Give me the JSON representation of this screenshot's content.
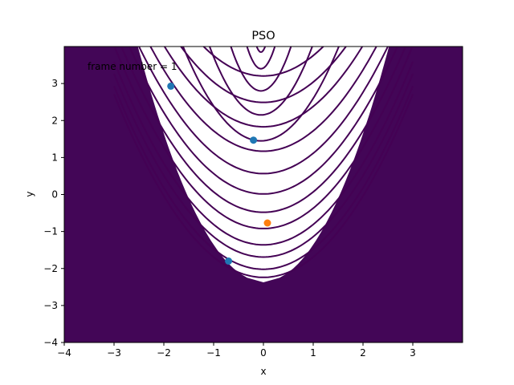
{
  "chart_data": {
    "type": "scatter",
    "title": "PSO",
    "xlabel": "x",
    "ylabel": "y",
    "xlim": [
      -4,
      4
    ],
    "ylim": [
      -4,
      4
    ],
    "x_ticks": [
      -4,
      -3,
      -2,
      -1,
      0,
      1,
      2,
      3
    ],
    "y_ticks": [
      -4,
      -3,
      -2,
      -1,
      0,
      1,
      2,
      3
    ],
    "annotation": "frame number = 1",
    "grid": false,
    "background": "contour",
    "colormap": [
      "#440154",
      "#3b528b",
      "#21918c",
      "#5ec962",
      "#fde725"
    ],
    "contour_line_color": "#440154",
    "series": [
      {
        "color": "#1f77b4",
        "points": [
          [
            -1.86,
            2.93
          ],
          [
            -0.2,
            1.47
          ],
          [
            -0.7,
            -1.8
          ]
        ]
      },
      {
        "color": "#ff7f0e",
        "points": [
          [
            0.08,
            -0.77
          ]
        ]
      }
    ]
  }
}
